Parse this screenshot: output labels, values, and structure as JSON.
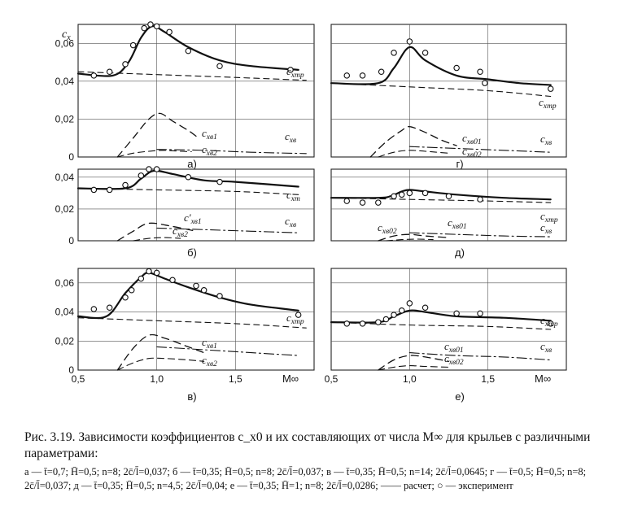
{
  "figure": {
    "y_label": "c_x",
    "x_label": "M∞",
    "x_tick_labels": [
      "0,5",
      "1,0",
      "1,5"
    ],
    "y_tick_labels_top": [
      "0,06",
      "0,04",
      "0,02",
      "0"
    ],
    "y_tick_labels_mid": [
      "0,04",
      "0,02",
      "0"
    ],
    "y_tick_labels_bottom": [
      "0,06",
      "0,04",
      "0,02",
      "0"
    ]
  },
  "chart_data": [
    {
      "panel": "а)",
      "type": "line",
      "xlim": [
        0.5,
        2.0
      ],
      "ylim": [
        0,
        0.07
      ],
      "curve_labels": [
        "c_xтр",
        "c_xв1",
        "c_xв2",
        "c_xв"
      ],
      "series": [
        {
          "name": "c_xтр",
          "x": [
            0.5,
            0.72,
            0.82,
            0.9,
            0.97,
            1.05,
            1.2,
            1.4,
            1.6,
            1.9
          ],
          "values": [
            0.044,
            0.043,
            0.05,
            0.063,
            0.069,
            0.066,
            0.058,
            0.051,
            0.048,
            0.046
          ]
        },
        {
          "x": [
            0.5,
            1.0,
            1.5,
            1.95
          ],
          "values": [
            0.045,
            0.0435,
            0.042,
            0.0405
          ]
        },
        {
          "x": [
            0.75,
            0.85,
            0.95,
            1.02,
            1.1,
            1.2,
            1.25
          ],
          "values": [
            0.0,
            0.01,
            0.02,
            0.023,
            0.019,
            0.014,
            0.011
          ]
        },
        {
          "x": [
            0.75,
            0.85,
            0.95,
            1.05,
            1.15,
            1.22
          ],
          "values": [
            0.0,
            0.002,
            0.003,
            0.0035,
            0.003,
            0.0028
          ]
        },
        {
          "x": [
            1.0,
            1.3,
            1.6,
            1.95
          ],
          "values": [
            0.004,
            0.0035,
            0.0025,
            0.0018
          ]
        }
      ],
      "experiment": {
        "x": [
          0.6,
          0.7,
          0.8,
          0.85,
          0.92,
          0.96,
          1.0,
          1.08,
          1.2,
          1.4,
          1.85
        ],
        "values": [
          0.043,
          0.045,
          0.049,
          0.059,
          0.068,
          0.07,
          0.069,
          0.066,
          0.056,
          0.048,
          0.046
        ]
      }
    },
    {
      "panel": "г)",
      "type": "line",
      "xlim": [
        0.5,
        2.0
      ],
      "ylim": [
        0,
        0.07
      ],
      "curve_labels": [
        "c_xтр",
        "c_xв01",
        "c_xв02",
        "c_xв"
      ],
      "series": [
        {
          "name": "c_xтр",
          "x": [
            0.5,
            0.8,
            0.9,
            1.0,
            1.1,
            1.3,
            1.5,
            1.7,
            1.9
          ],
          "values": [
            0.039,
            0.039,
            0.047,
            0.058,
            0.051,
            0.043,
            0.041,
            0.039,
            0.038
          ]
        },
        {
          "x": [
            0.5,
            1.0,
            1.5,
            1.9
          ],
          "values": [
            0.039,
            0.037,
            0.035,
            0.032
          ]
        },
        {
          "x": [
            0.75,
            0.85,
            0.95,
            1.0,
            1.1,
            1.2,
            1.3
          ],
          "values": [
            0.0,
            0.008,
            0.014,
            0.016,
            0.013,
            0.009,
            0.006
          ]
        },
        {
          "x": [
            0.8,
            0.9,
            1.0,
            1.1,
            1.25
          ],
          "values": [
            0.0,
            0.0025,
            0.0035,
            0.003,
            0.002
          ]
        },
        {
          "x": [
            1.0,
            1.3,
            1.6,
            1.9
          ],
          "values": [
            0.0055,
            0.0045,
            0.0035,
            0.0025
          ]
        }
      ],
      "experiment": {
        "x": [
          0.6,
          0.7,
          0.82,
          0.9,
          1.0,
          1.1,
          1.3,
          1.45,
          1.48,
          1.9
        ],
        "values": [
          0.043,
          0.043,
          0.045,
          0.055,
          0.061,
          0.055,
          0.047,
          0.045,
          0.039,
          0.036
        ]
      }
    },
    {
      "panel": "б)",
      "type": "line",
      "xlim": [
        0.5,
        2.0
      ],
      "ylim": [
        0,
        0.045
      ],
      "curve_labels": [
        "c_xт",
        "c'_xв1",
        "c_xв2",
        "c_xв"
      ],
      "series": [
        {
          "name": "c_xт",
          "x": [
            0.5,
            0.8,
            0.9,
            0.98,
            1.1,
            1.3,
            1.5,
            1.9
          ],
          "values": [
            0.033,
            0.033,
            0.039,
            0.044,
            0.042,
            0.038,
            0.037,
            0.034
          ]
        },
        {
          "x": [
            0.5,
            1.0,
            1.5,
            1.9
          ],
          "values": [
            0.033,
            0.032,
            0.031,
            0.029
          ]
        },
        {
          "x": [
            0.75,
            0.85,
            0.95,
            1.1,
            1.25
          ],
          "values": [
            0.0,
            0.006,
            0.011,
            0.009,
            0.006
          ]
        },
        {
          "x": [
            0.85,
            0.95,
            1.05,
            1.15
          ],
          "values": [
            0.0,
            0.0015,
            0.002,
            0.0015
          ]
        },
        {
          "x": [
            1.0,
            1.3,
            1.6,
            1.9
          ],
          "values": [
            0.008,
            0.007,
            0.006,
            0.005
          ]
        }
      ],
      "experiment": {
        "x": [
          0.6,
          0.7,
          0.8,
          0.9,
          0.95,
          1.0,
          1.2,
          1.4
        ],
        "values": [
          0.032,
          0.032,
          0.035,
          0.041,
          0.045,
          0.045,
          0.04,
          0.037
        ]
      }
    },
    {
      "panel": "д)",
      "type": "line",
      "xlim": [
        0.5,
        2.0
      ],
      "ylim": [
        0,
        0.045
      ],
      "curve_labels": [
        "c_xв02",
        "c_xв01",
        "c_xтр",
        "c_xв"
      ],
      "series": [
        {
          "name": "c_xтр",
          "x": [
            0.5,
            0.8,
            0.88,
            0.95,
            1.0,
            1.1,
            1.3,
            1.6,
            1.9
          ],
          "values": [
            0.027,
            0.027,
            0.028,
            0.031,
            0.032,
            0.031,
            0.029,
            0.027,
            0.026
          ]
        },
        {
          "x": [
            0.5,
            1.0,
            1.5,
            1.9
          ],
          "values": [
            0.027,
            0.026,
            0.025,
            0.024
          ]
        },
        {
          "x": [
            0.8,
            0.9,
            1.0,
            1.1,
            1.25
          ],
          "values": [
            0.0,
            0.003,
            0.004,
            0.003,
            0.002
          ]
        },
        {
          "x": [
            0.85,
            0.95,
            1.05,
            1.15
          ],
          "values": [
            0.0,
            0.0007,
            0.001,
            0.0007
          ]
        },
        {
          "x": [
            1.0,
            1.3,
            1.6,
            1.9
          ],
          "values": [
            0.005,
            0.004,
            0.003,
            0.0025
          ]
        }
      ],
      "experiment": {
        "x": [
          0.6,
          0.7,
          0.8,
          0.9,
          0.95,
          1.0,
          1.1,
          1.25,
          1.45
        ],
        "values": [
          0.025,
          0.024,
          0.024,
          0.028,
          0.029,
          0.03,
          0.03,
          0.028,
          0.026
        ]
      }
    },
    {
      "panel": "в)",
      "type": "line",
      "xlim": [
        0.5,
        2.0
      ],
      "ylim": [
        0,
        0.07
      ],
      "curve_labels": [
        "c_xтр",
        "c_xв1",
        "c_xв2"
      ],
      "series": [
        {
          "name": "c_xтр",
          "x": [
            0.5,
            0.68,
            0.8,
            0.9,
            0.95,
            1.05,
            1.2,
            1.4,
            1.6,
            1.9
          ],
          "values": [
            0.037,
            0.037,
            0.053,
            0.064,
            0.067,
            0.063,
            0.057,
            0.05,
            0.045,
            0.041
          ]
        },
        {
          "x": [
            0.5,
            1.0,
            1.5,
            1.95
          ],
          "values": [
            0.036,
            0.034,
            0.032,
            0.029
          ]
        },
        {
          "x": [
            0.75,
            0.85,
            0.95,
            1.05,
            1.2,
            1.3
          ],
          "values": [
            0.0,
            0.015,
            0.024,
            0.022,
            0.016,
            0.012
          ]
        },
        {
          "x": [
            0.75,
            0.85,
            0.95,
            1.05,
            1.2,
            1.3
          ],
          "values": [
            0.0,
            0.005,
            0.008,
            0.008,
            0.007,
            0.006
          ]
        },
        {
          "x": [
            1.0,
            1.3,
            1.6,
            1.9
          ],
          "values": [
            0.016,
            0.014,
            0.012,
            0.01
          ]
        }
      ],
      "experiment": {
        "x": [
          0.6,
          0.7,
          0.8,
          0.84,
          0.9,
          0.95,
          1.0,
          1.1,
          1.25,
          1.3,
          1.4,
          1.9
        ],
        "values": [
          0.042,
          0.043,
          0.05,
          0.055,
          0.063,
          0.068,
          0.067,
          0.062,
          0.058,
          0.055,
          0.051,
          0.038
        ]
      }
    },
    {
      "panel": "е)",
      "type": "line",
      "xlim": [
        0.5,
        2.0
      ],
      "ylim": [
        0,
        0.07
      ],
      "curve_labels": [
        "c_xтр",
        "c_xв01",
        "c_xв02",
        "c_xв"
      ],
      "series": [
        {
          "name": "c_xтр",
          "x": [
            0.5,
            0.8,
            0.9,
            1.0,
            1.1,
            1.3,
            1.6,
            1.9
          ],
          "values": [
            0.033,
            0.033,
            0.037,
            0.041,
            0.04,
            0.037,
            0.036,
            0.034
          ]
        },
        {
          "x": [
            0.5,
            1.0,
            1.5,
            1.9
          ],
          "values": [
            0.033,
            0.031,
            0.03,
            0.028
          ]
        },
        {
          "x": [
            0.8,
            0.9,
            1.0,
            1.1,
            1.25
          ],
          "values": [
            0.0,
            0.007,
            0.01,
            0.009,
            0.006
          ]
        },
        {
          "x": [
            0.8,
            0.9,
            1.0,
            1.1,
            1.25
          ],
          "values": [
            0.0,
            0.002,
            0.003,
            0.0025,
            0.002
          ]
        },
        {
          "x": [
            1.0,
            1.3,
            1.6,
            1.9
          ],
          "values": [
            0.012,
            0.01,
            0.009,
            0.007
          ]
        }
      ],
      "experiment": {
        "x": [
          0.6,
          0.7,
          0.8,
          0.85,
          0.9,
          0.95,
          1.0,
          1.1,
          1.3,
          1.45,
          1.9
        ],
        "values": [
          0.032,
          0.032,
          0.033,
          0.035,
          0.038,
          0.041,
          0.046,
          0.043,
          0.039,
          0.039,
          0.032
        ]
      }
    }
  ],
  "caption": {
    "title": "Рис. 3.19. Зависимости коэффициентов c_x0 и их составляющих от числа M∞ для крыльев с различными параметрами:",
    "params": "а — t̄=0,7; H̄=0,5; n=8; 2c̄/l̄=0,037; б — t̄=0,35; H̄=0,5; n=8; 2c̄/l̄=0,037; в — t̄=0,35; H̄=0,5; n=14; 2c̄/l̄=0,0645; г — t̄=0,5; H̄=0,5; n=8; 2c̄/l̄=0,037; д — t̄=0,35; H̄=0,5; n=4,5; 2c̄/l̄=0,04; е — t̄=0,35; H̄=1; n=8; 2c̄/l̄=0,0286; —— расчет; ○ — эксперимент"
  }
}
